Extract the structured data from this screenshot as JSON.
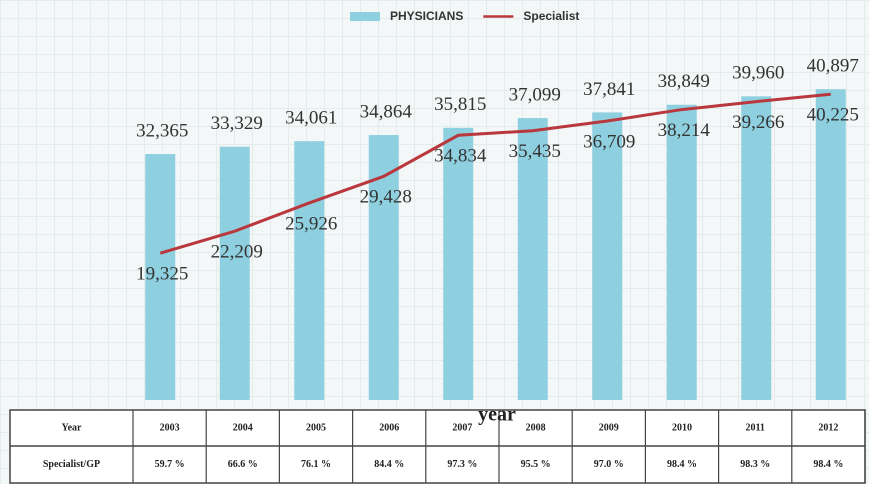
{
  "chart_data": {
    "type": "bar-line",
    "x_label": "year",
    "categories": [
      "2003",
      "2004",
      "2005",
      "2006",
      "2007",
      "2008",
      "2009",
      "2010",
      "2011",
      "2012"
    ],
    "ylim": [
      0,
      50000
    ],
    "last_label_color": "#e02a2a",
    "series": [
      {
        "name": "PHYSICIANS",
        "type": "bar",
        "color": "#8fd0e0",
        "values": [
          32365,
          33329,
          34061,
          34864,
          35815,
          37099,
          37841,
          38849,
          39960,
          40897
        ],
        "value_labels": [
          "32,365",
          "33,329",
          "34,061",
          "34,864",
          "35,815",
          "37,099",
          "37,841",
          "38,849",
          "39,960",
          "40,897"
        ]
      },
      {
        "name": "Specialist",
        "type": "line",
        "color": "#b8383d",
        "values": [
          19325,
          22209,
          25926,
          29428,
          34834,
          35435,
          36709,
          38214,
          39266,
          40225
        ],
        "value_labels": [
          "19,325",
          "22,209",
          "25,926",
          "29,428",
          "34,834",
          "35,435",
          "36,709",
          "38,214",
          "39,266",
          "40,225"
        ]
      }
    ],
    "table": {
      "header_label": "Year",
      "row_label": "Specialist/GP",
      "row": [
        "59.7 %",
        "66.6 %",
        "76.1 %",
        "84.4 %",
        "97.3 %",
        "95.5 %",
        "97.0 %",
        "98.4 %",
        "98.3 %",
        "98.4 %"
      ]
    }
  }
}
